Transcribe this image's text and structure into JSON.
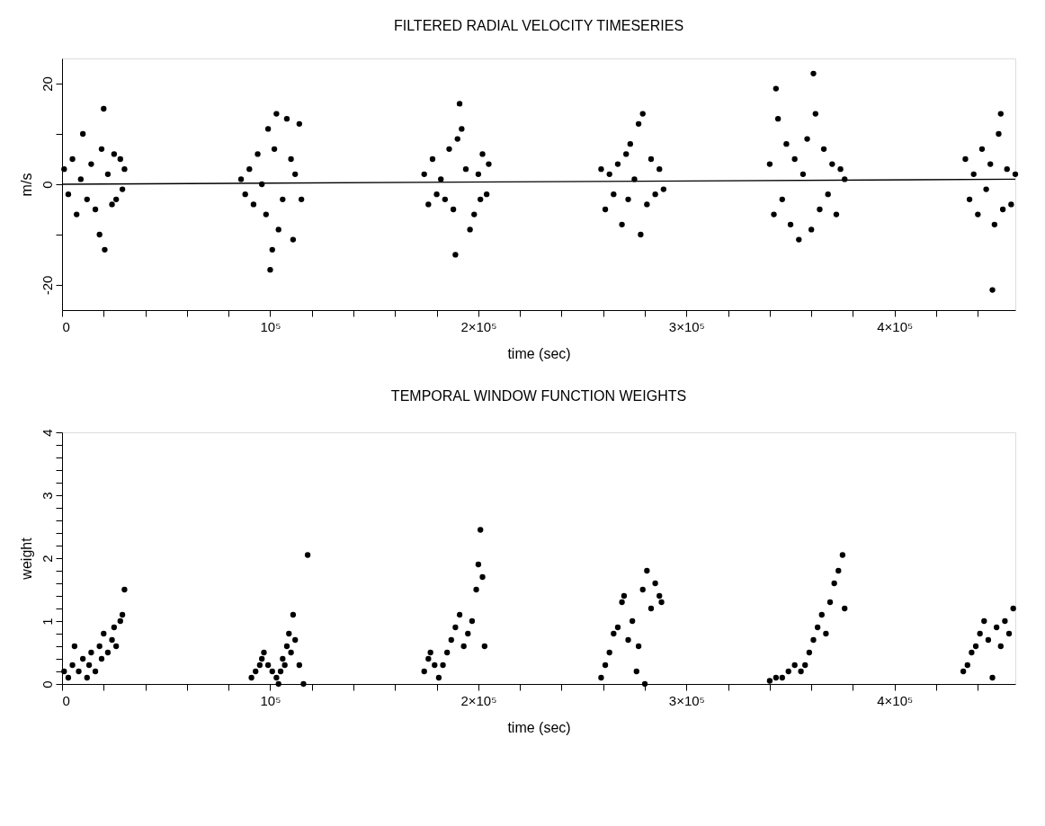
{
  "chart_data": [
    {
      "type": "scatter",
      "title": "FILTERED RADIAL VELOCITY TIMESERIES",
      "xlabel": "time (sec)",
      "ylabel": "m/s",
      "xlim": [
        0,
        458000
      ],
      "ylim": [
        -25,
        25
      ],
      "xticks": [
        0,
        {
          "value": 20000,
          "label": null
        },
        {
          "value": 40000,
          "label": null
        },
        {
          "value": 60000,
          "label": null
        },
        {
          "value": 80000,
          "label": null
        },
        {
          "value": 100000,
          "label": "10⁵"
        },
        {
          "value": 120000,
          "label": null
        },
        {
          "value": 140000,
          "label": null
        },
        {
          "value": 160000,
          "label": null
        },
        {
          "value": 180000,
          "label": null
        },
        {
          "value": 200000,
          "label": "2×10⁵"
        },
        {
          "value": 220000,
          "label": null
        },
        {
          "value": 240000,
          "label": null
        },
        {
          "value": 260000,
          "label": null
        },
        {
          "value": 280000,
          "label": null
        },
        {
          "value": 300000,
          "label": "3×10⁵"
        },
        {
          "value": 320000,
          "label": null
        },
        {
          "value": 340000,
          "label": null
        },
        {
          "value": 360000,
          "label": null
        },
        {
          "value": 380000,
          "label": null
        },
        {
          "value": 400000,
          "label": "4×10⁵"
        },
        {
          "value": 420000,
          "label": null
        },
        {
          "value": 440000,
          "label": null
        }
      ],
      "yticks": [
        -20,
        {
          "value": -10,
          "label": null
        },
        0,
        {
          "value": 10,
          "label": null
        },
        20
      ],
      "grid": false,
      "series": [
        {
          "color": "#000000",
          "marker": "circle",
          "x": [
            1000,
            3000,
            5000,
            7000,
            9000,
            10000,
            12000,
            14000,
            16000,
            18000,
            19000,
            20000,
            20500,
            22000,
            24000,
            25000,
            26000,
            28000,
            29000,
            30000,
            86000,
            88000,
            90000,
            92000,
            94000,
            96000,
            98000,
            99000,
            100000,
            101000,
            102000,
            103000,
            104000,
            106000,
            108000,
            110000,
            111000,
            112000,
            114000,
            115000,
            174000,
            176000,
            178000,
            180000,
            182000,
            184000,
            186000,
            188000,
            189000,
            190000,
            191000,
            192000,
            194000,
            196000,
            198000,
            200000,
            201000,
            202000,
            204000,
            205000,
            259000,
            261000,
            263000,
            265000,
            267000,
            269000,
            271000,
            272000,
            273000,
            275000,
            277000,
            278000,
            279000,
            281000,
            283000,
            285000,
            287000,
            289000,
            340000,
            342000,
            343000,
            344000,
            346000,
            348000,
            350000,
            352000,
            354000,
            356000,
            358000,
            360000,
            361000,
            362000,
            364000,
            366000,
            368000,
            370000,
            372000,
            374000,
            376000,
            434000,
            436000,
            438000,
            440000,
            442000,
            444000,
            446000,
            447000,
            448000,
            450000,
            451000,
            452000,
            454000,
            456000,
            458000
          ],
          "values": [
            3,
            -2,
            5,
            -6,
            1,
            10,
            -3,
            4,
            -5,
            -10,
            7,
            15,
            -13,
            2,
            -4,
            6,
            -3,
            5,
            -1,
            3,
            1,
            -2,
            3,
            -4,
            6,
            0,
            -6,
            11,
            -17,
            -13,
            7,
            14,
            -9,
            -3,
            13,
            5,
            -11,
            2,
            12,
            -3,
            2,
            -4,
            5,
            -2,
            1,
            -3,
            7,
            -5,
            -14,
            9,
            16,
            11,
            3,
            -9,
            -6,
            2,
            -3,
            6,
            -2,
            4,
            3,
            -5,
            2,
            -2,
            4,
            -8,
            6,
            -3,
            8,
            1,
            12,
            -10,
            14,
            -4,
            5,
            -2,
            3,
            -1,
            4,
            -6,
            19,
            13,
            -3,
            8,
            -8,
            5,
            -11,
            2,
            9,
            -9,
            22,
            14,
            -5,
            7,
            -2,
            4,
            -6,
            3,
            1,
            5,
            -3,
            2,
            -6,
            7,
            -1,
            4,
            -21,
            -8,
            10,
            14,
            -5,
            3,
            -4,
            2
          ]
        },
        {
          "type": "line",
          "color": "#000000",
          "x": [
            0,
            458000
          ],
          "values": [
            0,
            1
          ]
        }
      ]
    },
    {
      "type": "scatter",
      "title": "TEMPORAL WINDOW FUNCTION WEIGHTS",
      "xlabel": "time (sec)",
      "ylabel": "weight",
      "xlim": [
        0,
        458000
      ],
      "ylim": [
        0,
        4
      ],
      "xticks": [
        0,
        {
          "value": 20000,
          "label": null
        },
        {
          "value": 40000,
          "label": null
        },
        {
          "value": 60000,
          "label": null
        },
        {
          "value": 80000,
          "label": null
        },
        {
          "value": 100000,
          "label": "10⁵"
        },
        {
          "value": 120000,
          "label": null
        },
        {
          "value": 140000,
          "label": null
        },
        {
          "value": 160000,
          "label": null
        },
        {
          "value": 180000,
          "label": null
        },
        {
          "value": 200000,
          "label": "2×10⁵"
        },
        {
          "value": 220000,
          "label": null
        },
        {
          "value": 240000,
          "label": null
        },
        {
          "value": 260000,
          "label": null
        },
        {
          "value": 280000,
          "label": null
        },
        {
          "value": 300000,
          "label": "3×10⁵"
        },
        {
          "value": 320000,
          "label": null
        },
        {
          "value": 340000,
          "label": null
        },
        {
          "value": 360000,
          "label": null
        },
        {
          "value": 380000,
          "label": null
        },
        {
          "value": 400000,
          "label": "4×10⁵"
        },
        {
          "value": 420000,
          "label": null
        },
        {
          "value": 440000,
          "label": null
        }
      ],
      "yticks": [
        0,
        {
          "value": 0.2,
          "label": null
        },
        {
          "value": 0.4,
          "label": null
        },
        {
          "value": 0.6,
          "label": null
        },
        {
          "value": 0.8,
          "label": null
        },
        1,
        {
          "value": 1.2,
          "label": null
        },
        {
          "value": 1.4,
          "label": null
        },
        {
          "value": 1.6,
          "label": null
        },
        {
          "value": 1.8,
          "label": null
        },
        2,
        {
          "value": 2.2,
          "label": null
        },
        {
          "value": 2.4,
          "label": null
        },
        {
          "value": 2.6,
          "label": null
        },
        {
          "value": 2.8,
          "label": null
        },
        3,
        {
          "value": 3.2,
          "label": null
        },
        {
          "value": 3.4,
          "label": null
        },
        {
          "value": 3.6,
          "label": null
        },
        {
          "value": 3.8,
          "label": null
        },
        4
      ],
      "grid": false,
      "series": [
        {
          "color": "#000000",
          "marker": "circle",
          "x": [
            1000,
            3000,
            5000,
            6000,
            8000,
            10000,
            12000,
            13000,
            14000,
            16000,
            18000,
            19000,
            20000,
            22000,
            24000,
            25000,
            26000,
            28000,
            29000,
            30000,
            91000,
            93000,
            95000,
            96000,
            97000,
            99000,
            101000,
            103000,
            104000,
            105000,
            106000,
            107000,
            108000,
            109000,
            110000,
            111000,
            112000,
            114000,
            116000,
            118000,
            174000,
            176000,
            177000,
            179000,
            181000,
            183000,
            185000,
            187000,
            189000,
            191000,
            193000,
            195000,
            197000,
            199000,
            200000,
            201000,
            202000,
            203000,
            259000,
            261000,
            263000,
            265000,
            267000,
            269000,
            270000,
            272000,
            274000,
            276000,
            277000,
            279000,
            280000,
            281000,
            283000,
            285000,
            287000,
            288000,
            340000,
            343000,
            346000,
            349000,
            352000,
            355000,
            357000,
            359000,
            361000,
            363000,
            365000,
            367000,
            369000,
            371000,
            373000,
            375000,
            376000,
            433000,
            435000,
            437000,
            439000,
            441000,
            443000,
            445000,
            447000,
            449000,
            451000,
            453000,
            455000,
            457000
          ],
          "values": [
            0.2,
            0.1,
            0.3,
            0.6,
            0.2,
            0.4,
            0.1,
            0.3,
            0.5,
            0.2,
            0.6,
            0.4,
            0.8,
            0.5,
            0.7,
            0.9,
            0.6,
            1.0,
            1.1,
            1.5,
            0.1,
            0.2,
            0.3,
            0.4,
            0.5,
            0.3,
            0.2,
            0.1,
            0.0,
            0.2,
            0.4,
            0.3,
            0.6,
            0.8,
            0.5,
            1.1,
            0.7,
            0.3,
            0.0,
            2.05,
            0.2,
            0.4,
            0.5,
            0.3,
            0.1,
            0.3,
            0.5,
            0.7,
            0.9,
            1.1,
            0.6,
            0.8,
            1.0,
            1.5,
            1.9,
            2.45,
            1.7,
            0.6,
            0.1,
            0.3,
            0.5,
            0.8,
            0.9,
            1.3,
            1.4,
            0.7,
            1.0,
            0.2,
            0.6,
            1.5,
            0.0,
            1.8,
            1.2,
            1.6,
            1.4,
            1.3,
            0.05,
            0.1,
            0.1,
            0.2,
            0.3,
            0.2,
            0.3,
            0.5,
            0.7,
            0.9,
            1.1,
            0.8,
            1.3,
            1.6,
            1.8,
            2.05,
            1.2,
            0.2,
            0.3,
            0.5,
            0.6,
            0.8,
            1.0,
            0.7,
            0.1,
            0.9,
            0.6,
            1.0,
            0.8,
            1.2
          ]
        }
      ]
    }
  ]
}
